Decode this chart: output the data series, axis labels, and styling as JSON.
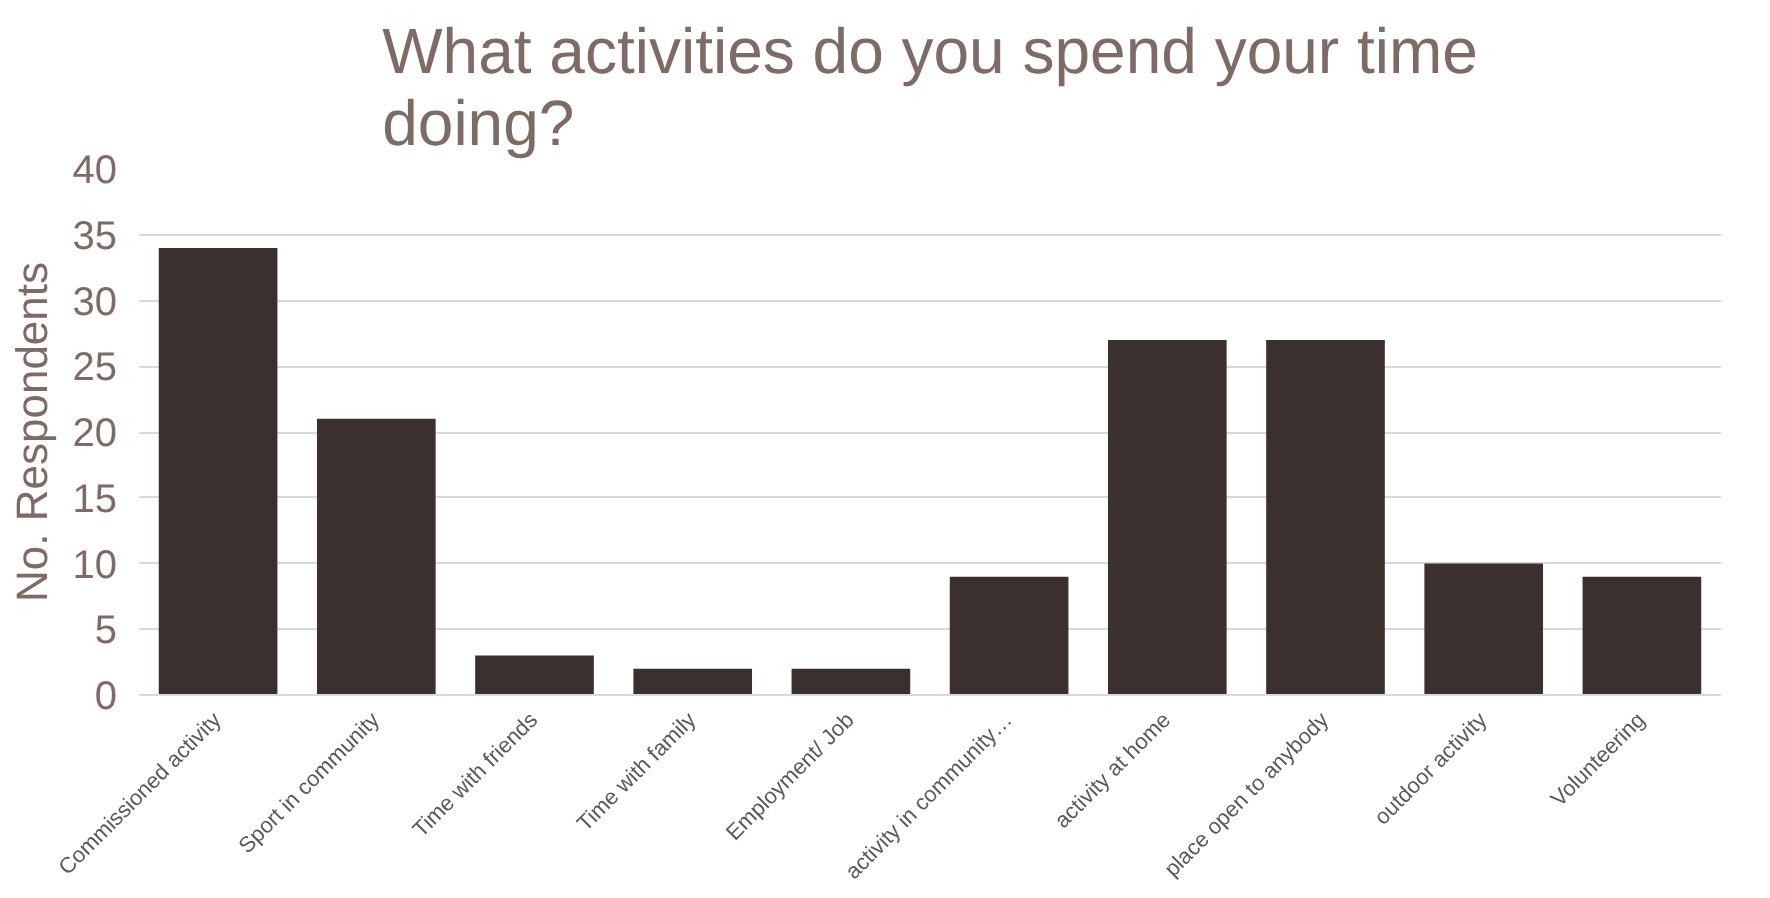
{
  "chart_data": {
    "type": "bar",
    "title": "What activities do you spend your time doing?",
    "ylabel": "No. Respondents",
    "categories": [
      "Commissioned activity",
      "Sport in community",
      "Time with friends",
      "Time with family",
      "Employment/ Job",
      "activity in community…",
      "activity at home",
      "place open to anybody",
      "outdoor activity",
      "Volunteering"
    ],
    "values": [
      34,
      21,
      3,
      2,
      2,
      9,
      27,
      27,
      10,
      9
    ],
    "color": "#3b302e",
    "ylim": [
      0,
      40
    ],
    "yticks": [
      0,
      5,
      10,
      15,
      20,
      25,
      30,
      35,
      40
    ],
    "grid": "y"
  }
}
